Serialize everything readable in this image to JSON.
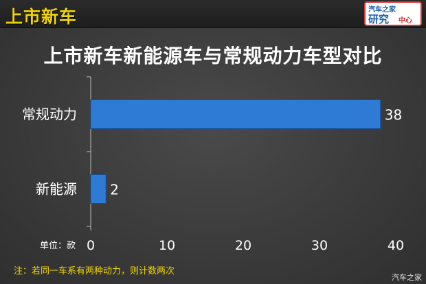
{
  "header": {
    "section_label": "上市新车",
    "logo": {
      "line1": "汽车之家",
      "line2": "研究",
      "line3": "中心"
    }
  },
  "footer": {
    "unit": "单位：款",
    "note": "注：若同一车系有两种动力，则计数两次",
    "watermark": "汽车之家"
  },
  "colors": {
    "bar": "#2e7bd6",
    "bar_edge": "#1a4f94",
    "accent": "#f0d400",
    "background": "#3a3a3a"
  },
  "chart_data": {
    "type": "bar",
    "orientation": "horizontal",
    "title": "上市新车新能源车与常规动力车型对比",
    "categories": [
      "常规动力",
      "新能源"
    ],
    "values": [
      38,
      2
    ],
    "xlim": [
      0,
      40
    ],
    "ticks": [
      0,
      10,
      20,
      30,
      40
    ],
    "grid": false,
    "legend": "none"
  }
}
